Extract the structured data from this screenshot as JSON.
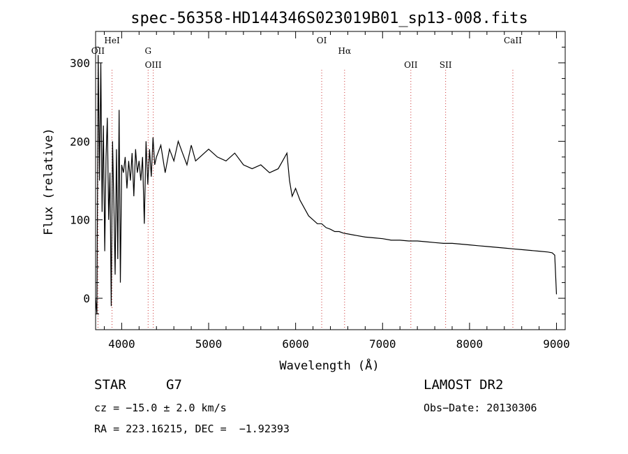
{
  "chart_data": {
    "type": "line",
    "title": "spec-56358-HD144346S023019B01_sp13-008.fits",
    "xlabel": "Wavelength (Å)",
    "ylabel": "Flux (relative)",
    "xlim": [
      3700,
      9100
    ],
    "ylim": [
      -40,
      340
    ],
    "xticks": [
      4000,
      5000,
      6000,
      7000,
      8000,
      9000
    ],
    "yticks": [
      0,
      100,
      200,
      300
    ],
    "grid": false,
    "line_color": "#000000",
    "marker_color": "#cc3333",
    "spectral_lines": [
      {
        "label": "HeI",
        "x": 3889,
        "row": 0
      },
      {
        "label": "OII",
        "x": 3727,
        "row": 1
      },
      {
        "label": "OIII",
        "x": 4363,
        "row": 2
      },
      {
        "label": "G",
        "x": 4304,
        "row": 1
      },
      {
        "label": "OI",
        "x": 6300,
        "row": 0
      },
      {
        "label": "Hα",
        "x": 6563,
        "row": 1
      },
      {
        "label": "OII",
        "x": 7325,
        "row": 2
      },
      {
        "label": "SII",
        "x": 7725,
        "row": 2
      },
      {
        "label": "CaII",
        "x": 8498,
        "row": 0
      }
    ],
    "series": [
      {
        "x": [
          3700,
          3715,
          3730,
          3745,
          3760,
          3775,
          3790,
          3805,
          3820,
          3835,
          3850,
          3865,
          3880,
          3895,
          3910,
          3925,
          3940,
          3955,
          3970,
          3985,
          4000,
          4020,
          4040,
          4060,
          4080,
          4100,
          4120,
          4140,
          4160,
          4180,
          4200,
          4220,
          4240,
          4260,
          4280,
          4300,
          4320,
          4340,
          4360,
          4380,
          4400,
          4450,
          4500,
          4550,
          4600,
          4650,
          4700,
          4750,
          4800,
          4850,
          4900,
          4950,
          5000,
          5100,
          5200,
          5300,
          5400,
          5500,
          5600,
          5700,
          5800,
          5850,
          5900,
          5930,
          5960,
          6000,
          6050,
          6100,
          6150,
          6200,
          6250,
          6300,
          6350,
          6400,
          6450,
          6500,
          6550,
          6600,
          6700,
          6800,
          6900,
          7000,
          7100,
          7200,
          7300,
          7400,
          7500,
          7600,
          7700,
          7800,
          7900,
          8000,
          8100,
          8200,
          8300,
          8400,
          8500,
          8600,
          8700,
          8800,
          8900,
          8950,
          8980,
          9000
        ],
        "y": [
          0,
          -20,
          310,
          150,
          300,
          110,
          220,
          60,
          180,
          230,
          100,
          160,
          -10,
          200,
          120,
          30,
          190,
          50,
          240,
          20,
          170,
          160,
          180,
          140,
          175,
          150,
          185,
          130,
          190,
          160,
          175,
          150,
          180,
          95,
          200,
          145,
          190,
          155,
          205,
          170,
          180,
          195,
          160,
          190,
          175,
          200,
          185,
          170,
          195,
          175,
          180,
          185,
          190,
          180,
          175,
          185,
          170,
          165,
          170,
          160,
          165,
          175,
          185,
          150,
          130,
          140,
          125,
          115,
          105,
          100,
          95,
          95,
          90,
          88,
          85,
          85,
          83,
          82,
          80,
          78,
          77,
          76,
          74,
          74,
          73,
          73,
          72,
          71,
          70,
          70,
          69,
          68,
          67,
          66,
          65,
          64,
          63,
          62,
          61,
          60,
          59,
          58,
          55,
          5
        ]
      }
    ]
  },
  "info": {
    "class": "STAR",
    "subclass": "G7",
    "cz": "cz = −15.0 ± 2.0 km/s",
    "coords": "RA = 223.16215, DEC =  −1.92393",
    "survey": "LAMOST DR2",
    "obs_date": "Obs−Date: 20130306"
  }
}
